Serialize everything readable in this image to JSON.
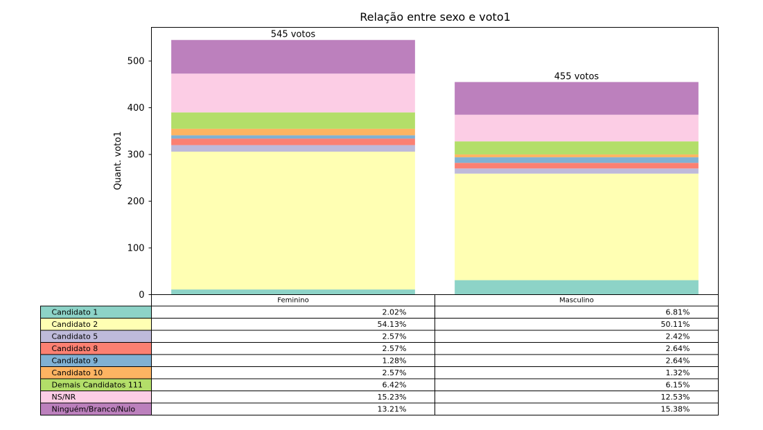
{
  "chart_data": {
    "type": "bar",
    "stacked": true,
    "title": "Relação entre sexo e voto1",
    "xlabel": "",
    "ylabel": "Quant. voto1",
    "ylim": [
      0,
      572
    ],
    "yticks": [
      0,
      100,
      200,
      300,
      400,
      500
    ],
    "categories": [
      "Feminino",
      "Masculino"
    ],
    "totals": [
      545,
      455
    ],
    "total_labels": [
      "545 votos",
      "455 votos"
    ],
    "series": [
      {
        "name": "Candidato 1",
        "color": "#8dd3c7",
        "values": [
          11,
          31
        ],
        "pct_labels": [
          "2.02%",
          "6.81%"
        ]
      },
      {
        "name": "Candidato 2",
        "color": "#ffffb3",
        "values": [
          295,
          228
        ],
        "pct_labels": [
          "54.13%",
          "50.11%"
        ]
      },
      {
        "name": "Candidato 5",
        "color": "#bebada",
        "values": [
          14,
          11
        ],
        "pct_labels": [
          "2.57%",
          "2.42%"
        ]
      },
      {
        "name": "Candidato 8",
        "color": "#fb8072",
        "values": [
          14,
          12
        ],
        "pct_labels": [
          "2.57%",
          "2.64%"
        ]
      },
      {
        "name": "Candidato 9",
        "color": "#80b1d3",
        "values": [
          7,
          12
        ],
        "pct_labels": [
          "1.28%",
          "2.64%"
        ]
      },
      {
        "name": "Candidato 10",
        "color": "#fdb462",
        "values": [
          14,
          6
        ],
        "pct_labels": [
          "2.57%",
          "1.32%"
        ]
      },
      {
        "name": "Demais Candidatos 111",
        "color": "#b3de69",
        "values": [
          35,
          28
        ],
        "pct_labels": [
          "6.42%",
          "6.15%"
        ]
      },
      {
        "name": "NS/NR",
        "color": "#fccde5",
        "values": [
          83,
          57
        ],
        "pct_labels": [
          "15.23%",
          "12.53%"
        ]
      },
      {
        "name": "Ninguém/Branco/Nulo",
        "color": "#bc80bd",
        "values": [
          72,
          70
        ],
        "pct_labels": [
          "13.21%",
          "15.38%"
        ]
      }
    ],
    "grid": false,
    "legend": "table-below"
  }
}
